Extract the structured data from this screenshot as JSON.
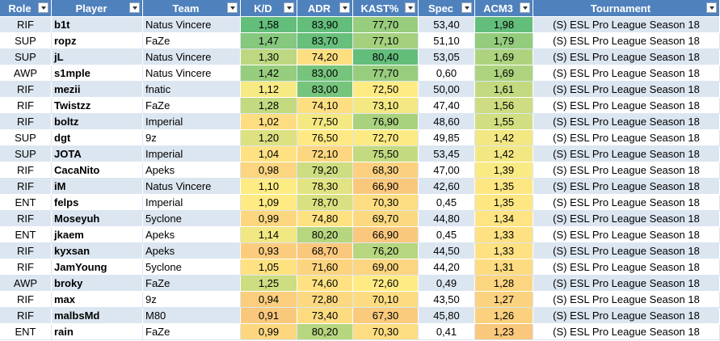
{
  "table": {
    "columns": [
      "Role",
      "Player",
      "Team",
      "K/D",
      "ADR",
      "KAST%",
      "Spec",
      "ACM3",
      "Tournament"
    ],
    "rows": [
      [
        "RIF",
        "b1t",
        "Natus Vincere",
        "1,58",
        "83,90",
        "77,70",
        "53,40",
        "1,98",
        "(S) ESL Pro League Season 18"
      ],
      [
        "SUP",
        "ropz",
        "FaZe",
        "1,47",
        "83,70",
        "77,10",
        "51,10",
        "1,79",
        "(S) ESL Pro League Season 18"
      ],
      [
        "SUP",
        "jL",
        "Natus Vincere",
        "1,30",
        "74,20",
        "80,40",
        "53,05",
        "1,69",
        "(S) ESL Pro League Season 18"
      ],
      [
        "AWP",
        "s1mple",
        "Natus Vincere",
        "1,42",
        "83,00",
        "77,70",
        "0,60",
        "1,69",
        "(S) ESL Pro League Season 18"
      ],
      [
        "RIF",
        "mezii",
        "fnatic",
        "1,12",
        "83,00",
        "72,50",
        "50,00",
        "1,61",
        "(S) ESL Pro League Season 18"
      ],
      [
        "RIF",
        "Twistzz",
        "FaZe",
        "1,28",
        "74,10",
        "73,10",
        "47,40",
        "1,56",
        "(S) ESL Pro League Season 18"
      ],
      [
        "RIF",
        "boltz",
        "Imperial",
        "1,02",
        "77,50",
        "76,90",
        "48,60",
        "1,55",
        "(S) ESL Pro League Season 18"
      ],
      [
        "SUP",
        "dgt",
        "9z",
        "1,20",
        "76,50",
        "72,70",
        "49,85",
        "1,42",
        "(S) ESL Pro League Season 18"
      ],
      [
        "SUP",
        "JOTA",
        "Imperial",
        "1,04",
        "72,10",
        "75,50",
        "53,45",
        "1,42",
        "(S) ESL Pro League Season 18"
      ],
      [
        "RIF",
        "CacaNito",
        "Apeks",
        "0,98",
        "79,20",
        "68,30",
        "47,00",
        "1,39",
        "(S) ESL Pro League Season 18"
      ],
      [
        "RIF",
        "iM",
        "Natus Vincere",
        "1,10",
        "78,30",
        "66,90",
        "42,60",
        "1,35",
        "(S) ESL Pro League Season 18"
      ],
      [
        "ENT",
        "felps",
        "Imperial",
        "1,09",
        "78,70",
        "70,30",
        "0,45",
        "1,35",
        "(S) ESL Pro League Season 18"
      ],
      [
        "RIF",
        "Moseyuh",
        "5yclone",
        "0,99",
        "74,80",
        "69,70",
        "44,80",
        "1,34",
        "(S) ESL Pro League Season 18"
      ],
      [
        "ENT",
        "jkaem",
        "Apeks",
        "1,14",
        "80,20",
        "66,90",
        "0,45",
        "1,33",
        "(S) ESL Pro League Season 18"
      ],
      [
        "RIF",
        "kyxsan",
        "Apeks",
        "0,93",
        "68,70",
        "76,20",
        "44,50",
        "1,33",
        "(S) ESL Pro League Season 18"
      ],
      [
        "RIF",
        "JamYoung",
        "5yclone",
        "1,05",
        "71,60",
        "69,00",
        "44,20",
        "1,31",
        "(S) ESL Pro League Season 18"
      ],
      [
        "AWP",
        "broky",
        "FaZe",
        "1,25",
        "74,60",
        "72,60",
        "0,49",
        "1,28",
        "(S) ESL Pro League Season 18"
      ],
      [
        "RIF",
        "max",
        "9z",
        "0,94",
        "72,80",
        "70,10",
        "43,50",
        "1,27",
        "(S) ESL Pro League Season 18"
      ],
      [
        "RIF",
        "malbsMd",
        "M80",
        "0,91",
        "73,40",
        "67,30",
        "45,80",
        "1,26",
        "(S) ESL Pro League Season 18"
      ],
      [
        "ENT",
        "rain",
        "FaZe",
        "0,99",
        "80,20",
        "70,30",
        "0,41",
        "1,23",
        "(S) ESL Pro League Season 18"
      ]
    ]
  }
}
